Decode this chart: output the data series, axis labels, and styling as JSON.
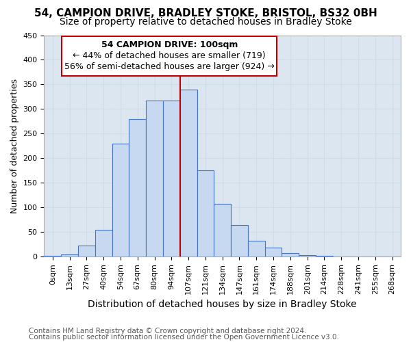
{
  "title": "54, CAMPION DRIVE, BRADLEY STOKE, BRISTOL, BS32 0BH",
  "subtitle": "Size of property relative to detached houses in Bradley Stoke",
  "xlabel": "Distribution of detached houses by size in Bradley Stoke",
  "ylabel": "Number of detached properties",
  "footnote1": "Contains HM Land Registry data © Crown copyright and database right 2024.",
  "footnote2": "Contains public sector information licensed under the Open Government Licence v3.0.",
  "annotation_title": "54 CAMPION DRIVE: 100sqm",
  "annotation_line1": "← 44% of detached houses are smaller (719)",
  "annotation_line2": "56% of semi-detached houses are larger (924) →",
  "bar_labels": [
    "0sqm",
    "13sqm",
    "27sqm",
    "40sqm",
    "54sqm",
    "67sqm",
    "80sqm",
    "94sqm",
    "107sqm",
    "121sqm",
    "134sqm",
    "147sqm",
    "161sqm",
    "174sqm",
    "188sqm",
    "201sqm",
    "214sqm",
    "228sqm",
    "241sqm",
    "255sqm",
    "268sqm"
  ],
  "bar_values": [
    2,
    5,
    22,
    55,
    230,
    280,
    317,
    317,
    340,
    175,
    108,
    65,
    32,
    18,
    8,
    3,
    2,
    0,
    0,
    0,
    0
  ],
  "bar_color": "#c6d9f1",
  "bar_edge_color": "#4472c4",
  "vline_color": "#c00000",
  "vline_x_idx": 8,
  "ylim": [
    0,
    450
  ],
  "yticks": [
    0,
    50,
    100,
    150,
    200,
    250,
    300,
    350,
    400,
    450
  ],
  "grid_color": "#d0dce8",
  "bg_color": "#dce6f1",
  "fig_bg_color": "#ffffff",
  "title_fontsize": 11,
  "subtitle_fontsize": 10,
  "ylabel_fontsize": 9,
  "xlabel_fontsize": 10,
  "tick_fontsize": 8,
  "annotation_fontsize": 9,
  "footnote_fontsize": 7.5
}
